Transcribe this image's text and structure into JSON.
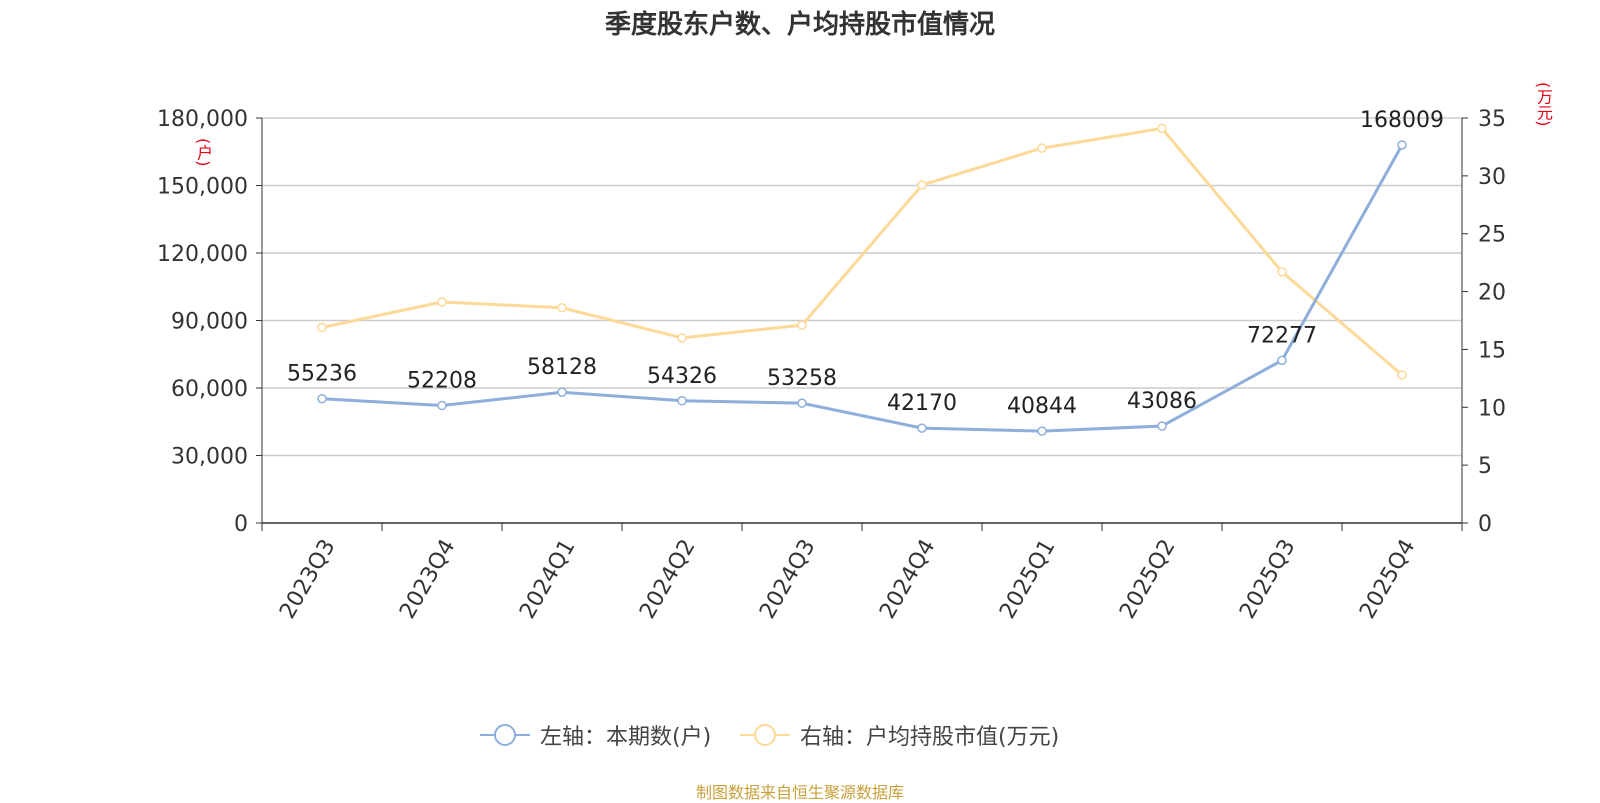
{
  "title": "季度股东户数、户均持股市值情况",
  "source": "制图数据来自恒生聚源数据库",
  "axes": {
    "left_unit": "(户)",
    "right_unit": "(万元)"
  },
  "legend": [
    {
      "label": "左轴：本期数(户)",
      "color": "#8eaedb"
    },
    {
      "label": "右轴：户均持股市值(万元)",
      "color": "#fdd998"
    }
  ],
  "chart_data": {
    "type": "line",
    "title": "季度股东户数、户均持股市值情况",
    "categories": [
      "2023Q3",
      "2023Q4",
      "2024Q1",
      "2024Q2",
      "2024Q3",
      "2024Q4",
      "2025Q1",
      "2025Q2",
      "2025Q3",
      "2025Q4"
    ],
    "left_axis": {
      "ylim": [
        0,
        180000
      ],
      "ticks": [
        0,
        30000,
        60000,
        90000,
        120000,
        150000,
        180000
      ],
      "tick_labels": [
        "0",
        "30,000",
        "60,000",
        "90,000",
        "120,000",
        "150,000",
        "180,000"
      ],
      "unit": "(户)"
    },
    "right_axis": {
      "ylim": [
        0,
        35
      ],
      "ticks": [
        0,
        5,
        10,
        15,
        20,
        25,
        30,
        35
      ],
      "tick_labels": [
        "0",
        "5",
        "10",
        "15",
        "20",
        "25",
        "30",
        "35"
      ],
      "unit": "(万元)"
    },
    "series": [
      {
        "name": "左轴：本期数(户)",
        "axis": "left",
        "color": "#8eaedb",
        "values": [
          55236,
          52208,
          58128,
          54326,
          53258,
          42170,
          40844,
          43086,
          72277,
          168009
        ],
        "show_labels": true
      },
      {
        "name": "右轴：户均持股市值(万元)",
        "axis": "right",
        "color": "#fdd998",
        "values": [
          16.9,
          19.1,
          18.6,
          16.0,
          17.1,
          29.2,
          32.4,
          34.1,
          21.7,
          12.8
        ],
        "show_labels": false
      }
    ],
    "grid": true,
    "legend_position": "bottom-center"
  }
}
